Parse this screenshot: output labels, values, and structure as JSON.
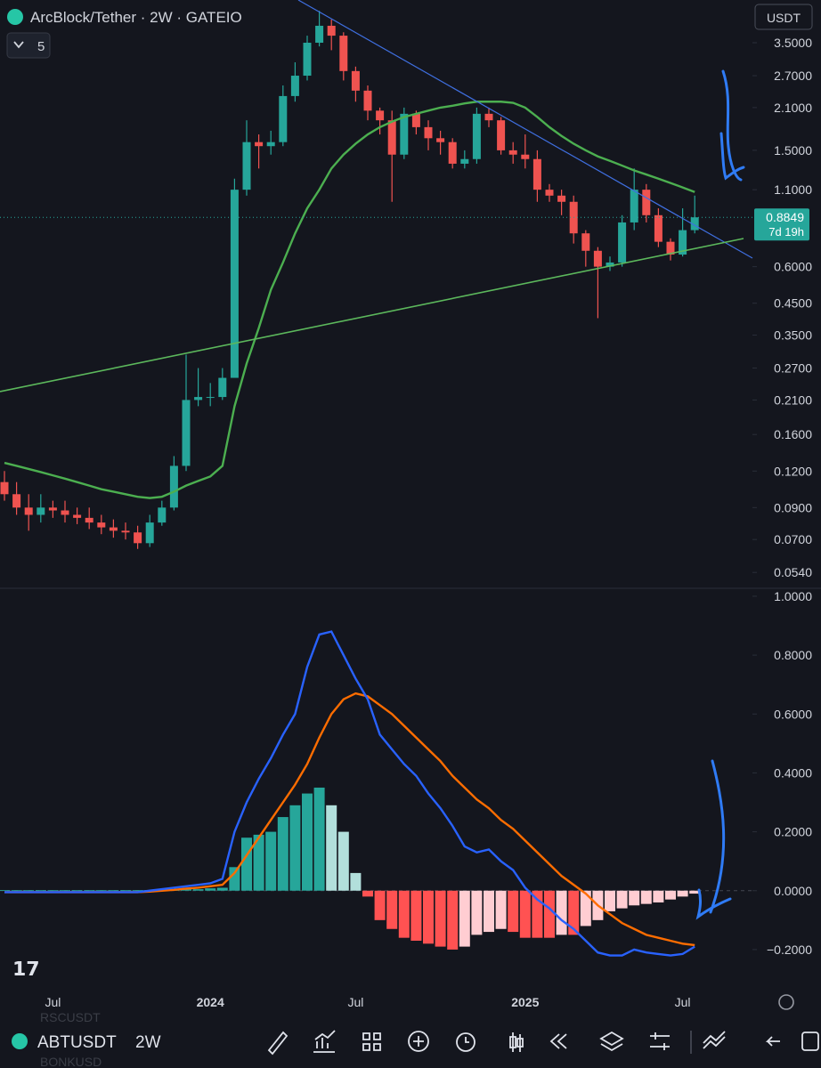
{
  "header": {
    "symbol_title": "ArcBlock/Tether · 2W · GATEIO",
    "indicator_count": "5",
    "currency": "USDT"
  },
  "chart_data": [
    {
      "type": "candlestick",
      "log_scale": true,
      "up_color": "#26a69a",
      "down_color": "#ef5350",
      "open": [
        0.11,
        0.1,
        0.09,
        0.085,
        0.09,
        0.088,
        0.085,
        0.083,
        0.08,
        0.077,
        0.075,
        0.074,
        0.068,
        0.08,
        0.09,
        0.125,
        0.21,
        0.215,
        0.215,
        0.25,
        1.1,
        1.6,
        1.55,
        1.6,
        2.3,
        2.7,
        3.5,
        4.0,
        3.7,
        2.8,
        2.4,
        2.05,
        1.9,
        1.45,
        2.0,
        1.8,
        1.65,
        1.6,
        1.35,
        1.4,
        2.0,
        1.9,
        1.5,
        1.45,
        1.4,
        1.1,
        1.05,
        1.0,
        0.78,
        0.68,
        0.6,
        0.62,
        0.85,
        1.1,
        0.9,
        0.73,
        0.66,
        0.8
      ],
      "high": [
        0.12,
        0.11,
        0.1,
        0.1,
        0.095,
        0.095,
        0.09,
        0.09,
        0.085,
        0.082,
        0.08,
        0.078,
        0.085,
        0.095,
        0.135,
        0.3,
        0.27,
        0.24,
        0.27,
        1.2,
        1.9,
        1.7,
        1.75,
        2.5,
        3.0,
        3.7,
        4.5,
        4.2,
        3.8,
        2.9,
        2.5,
        2.1,
        2.05,
        2.1,
        2.05,
        1.9,
        1.75,
        1.65,
        1.5,
        2.1,
        2.1,
        1.95,
        1.6,
        1.7,
        1.5,
        1.15,
        1.1,
        1.05,
        0.8,
        0.7,
        0.65,
        0.9,
        1.3,
        1.15,
        0.95,
        0.75,
        0.95,
        1.05
      ],
      "low": [
        0.095,
        0.085,
        0.075,
        0.08,
        0.083,
        0.08,
        0.079,
        0.076,
        0.073,
        0.071,
        0.07,
        0.065,
        0.066,
        0.078,
        0.088,
        0.12,
        0.2,
        0.2,
        0.21,
        0.25,
        1.05,
        1.3,
        1.45,
        1.55,
        2.2,
        2.6,
        3.4,
        3.3,
        2.6,
        2.2,
        1.9,
        1.7,
        1.0,
        1.4,
        1.7,
        1.5,
        1.45,
        1.3,
        1.3,
        1.35,
        1.8,
        1.45,
        1.35,
        1.3,
        1.0,
        1.0,
        0.9,
        0.72,
        0.6,
        0.4,
        0.58,
        0.6,
        0.8,
        0.85,
        0.7,
        0.63,
        0.65,
        0.78
      ],
      "close": [
        0.1,
        0.09,
        0.085,
        0.09,
        0.088,
        0.085,
        0.083,
        0.08,
        0.077,
        0.075,
        0.074,
        0.068,
        0.08,
        0.09,
        0.125,
        0.21,
        0.215,
        0.215,
        0.25,
        1.1,
        1.6,
        1.55,
        1.6,
        2.3,
        2.7,
        3.5,
        4.0,
        3.7,
        2.8,
        2.4,
        2.05,
        1.9,
        1.45,
        2.0,
        1.8,
        1.65,
        1.6,
        1.35,
        1.4,
        2.0,
        1.9,
        1.5,
        1.45,
        1.4,
        1.1,
        1.05,
        1.0,
        0.78,
        0.68,
        0.6,
        0.62,
        0.85,
        1.1,
        0.9,
        0.73,
        0.66,
        0.8,
        0.885
      ],
      "ma_color": "#4caf50",
      "ma_values": [
        0.128,
        0.125,
        0.122,
        0.119,
        0.116,
        0.113,
        0.11,
        0.107,
        0.104,
        0.102,
        0.1,
        0.098,
        0.097,
        0.098,
        0.102,
        0.107,
        0.111,
        0.115,
        0.125,
        0.2,
        0.28,
        0.37,
        0.5,
        0.62,
        0.78,
        0.95,
        1.1,
        1.3,
        1.45,
        1.58,
        1.7,
        1.8,
        1.88,
        1.95,
        2.0,
        2.05,
        2.1,
        2.13,
        2.17,
        2.2,
        2.2,
        2.2,
        2.18,
        2.1,
        1.95,
        1.8,
        1.68,
        1.58,
        1.5,
        1.43,
        1.38,
        1.33,
        1.28,
        1.24,
        1.2,
        1.16,
        1.12,
        1.08
      ],
      "last_price": 0.8849,
      "countdown": "7d 19h",
      "ylim": [
        0.048,
        4.9
      ],
      "yticks": [
        {
          "value": 3.5,
          "label": "3.5000"
        },
        {
          "value": 2.7,
          "label": "2.7000"
        },
        {
          "value": 2.1,
          "label": "2.1000"
        },
        {
          "value": 1.5,
          "label": "1.5000"
        },
        {
          "value": 1.1,
          "label": "1.1000"
        },
        {
          "value": 0.6,
          "label": "0.6000"
        },
        {
          "value": 0.45,
          "label": "0.4500"
        },
        {
          "value": 0.35,
          "label": "0.3500"
        },
        {
          "value": 0.27,
          "label": "0.2700"
        },
        {
          "value": 0.21,
          "label": "0.2100"
        },
        {
          "value": 0.16,
          "label": "0.1600"
        },
        {
          "value": 0.12,
          "label": "0.1200"
        },
        {
          "value": 0.09,
          "label": "0.0900"
        },
        {
          "value": 0.07,
          "label": "0.0700"
        },
        {
          "value": 0.054,
          "label": "0.0540"
        }
      ]
    },
    {
      "type": "macd",
      "macd_color": "#2962ff",
      "signal_color": "#ff6d00",
      "categories": [
        null,
        null,
        null,
        null,
        "Jul",
        null,
        null,
        null,
        null,
        null,
        null,
        null,
        null,
        null,
        null,
        null,
        null,
        "2024",
        null,
        null,
        null,
        null,
        null,
        null,
        null,
        null,
        null,
        null,
        null,
        "Jul",
        null,
        null,
        null,
        null,
        null,
        null,
        null,
        null,
        null,
        null,
        null,
        null,
        null,
        "2025",
        null,
        null,
        null,
        null,
        null,
        null,
        null,
        null,
        null,
        null,
        null,
        null,
        "Jul",
        null
      ],
      "macd": [
        -0.005,
        -0.005,
        -0.005,
        -0.005,
        -0.005,
        -0.005,
        -0.005,
        -0.005,
        -0.005,
        -0.005,
        -0.005,
        -0.005,
        0.0,
        0.005,
        0.01,
        0.015,
        0.02,
        0.025,
        0.04,
        0.2,
        0.3,
        0.38,
        0.45,
        0.53,
        0.6,
        0.76,
        0.87,
        0.88,
        0.8,
        0.72,
        0.65,
        0.53,
        0.48,
        0.43,
        0.39,
        0.33,
        0.28,
        0.22,
        0.15,
        0.13,
        0.14,
        0.1,
        0.07,
        0.01,
        -0.03,
        -0.06,
        -0.1,
        -0.13,
        -0.17,
        -0.21,
        -0.22,
        -0.22,
        -0.2,
        -0.21,
        -0.215,
        -0.22,
        -0.215,
        -0.19
      ],
      "signal": [
        -0.005,
        -0.005,
        -0.005,
        -0.005,
        -0.005,
        -0.005,
        -0.005,
        -0.005,
        -0.005,
        -0.005,
        -0.005,
        -0.005,
        -0.003,
        0.0,
        0.003,
        0.007,
        0.01,
        0.015,
        0.02,
        0.06,
        0.12,
        0.18,
        0.24,
        0.3,
        0.36,
        0.43,
        0.52,
        0.6,
        0.65,
        0.67,
        0.66,
        0.63,
        0.6,
        0.56,
        0.52,
        0.48,
        0.44,
        0.39,
        0.35,
        0.31,
        0.28,
        0.24,
        0.21,
        0.17,
        0.13,
        0.09,
        0.05,
        0.02,
        -0.01,
        -0.05,
        -0.08,
        -0.11,
        -0.13,
        -0.15,
        -0.16,
        -0.17,
        -0.18,
        -0.185
      ],
      "histogram": [
        0.002,
        0.002,
        0.002,
        0.002,
        0.002,
        0.002,
        0.002,
        0.002,
        0.002,
        0.002,
        0.002,
        0.002,
        0.002,
        0.002,
        0.002,
        0.005,
        0.005,
        0.008,
        0.01,
        0.08,
        0.18,
        0.19,
        0.2,
        0.25,
        0.29,
        0.33,
        0.35,
        0.29,
        0.2,
        0.06,
        -0.02,
        -0.1,
        -0.13,
        -0.16,
        -0.17,
        -0.18,
        -0.19,
        -0.2,
        -0.19,
        -0.15,
        -0.14,
        -0.13,
        -0.14,
        -0.16,
        -0.16,
        -0.16,
        -0.15,
        -0.15,
        -0.12,
        -0.1,
        -0.07,
        -0.06,
        -0.05,
        -0.045,
        -0.04,
        -0.03,
        -0.02,
        -0.01
      ],
      "ylim": [
        -0.3,
        1.03
      ],
      "yticks": [
        {
          "value": 1.0,
          "label": "1.0000"
        },
        {
          "value": 0.8,
          "label": "0.8000"
        },
        {
          "value": 0.6,
          "label": "0.6000"
        },
        {
          "value": 0.4,
          "label": "0.4000"
        },
        {
          "value": 0.2,
          "label": "0.2000"
        },
        {
          "value": 0,
          "label": "0.0000"
        },
        {
          "value": -0.2,
          "label": "−0.2000"
        }
      ]
    }
  ],
  "footer": {
    "symbol": "ABTUSDT",
    "interval": "2W",
    "watchlist": [
      "RSCUSDT",
      "BONKUSD"
    ]
  }
}
